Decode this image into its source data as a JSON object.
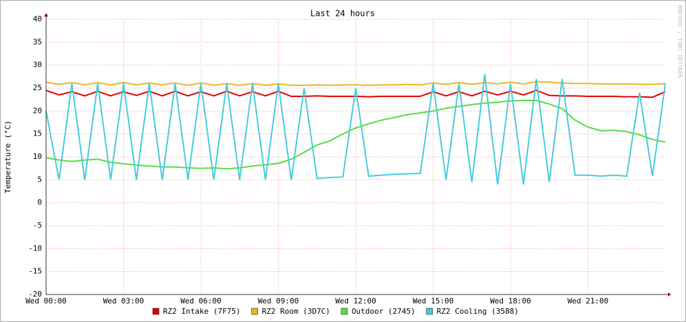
{
  "chart_data": {
    "type": "line",
    "title": "Last 24 hours",
    "y_label": "Temperature (°C)",
    "watermark": "RRDTOOL / TOBI OETIKER",
    "x": [
      0,
      0.5,
      1,
      1.5,
      2,
      2.5,
      3,
      3.5,
      4,
      4.5,
      5,
      5.5,
      6,
      6.5,
      7,
      7.5,
      8,
      8.5,
      9,
      9.5,
      10,
      10.5,
      11,
      11.5,
      12,
      12.5,
      13,
      13.5,
      14,
      14.5,
      15,
      15.5,
      16,
      16.5,
      17,
      17.5,
      18,
      18.5,
      19,
      19.5,
      20,
      20.5,
      21,
      21.5,
      22,
      22.5,
      23,
      23.5,
      24
    ],
    "xlim": [
      0,
      24
    ],
    "xticks": [
      {
        "value": 0,
        "label": "Wed 00:00"
      },
      {
        "value": 3,
        "label": "Wed 03:00"
      },
      {
        "value": 6,
        "label": "Wed 06:00"
      },
      {
        "value": 9,
        "label": "Wed 09:00"
      },
      {
        "value": 12,
        "label": "Wed 12:00"
      },
      {
        "value": 15,
        "label": "Wed 15:00"
      },
      {
        "value": 18,
        "label": "Wed 18:00"
      },
      {
        "value": 21,
        "label": "Wed 21:00"
      }
    ],
    "ylim": [
      -20,
      40
    ],
    "yticks": [
      -20,
      -15,
      -10,
      -5,
      0,
      5,
      10,
      15,
      20,
      25,
      30,
      35,
      40
    ],
    "grid": true,
    "series": [
      {
        "name": "RZ2 Intake (7F75)",
        "color": "#e00000",
        "values": [
          24.5,
          23.5,
          24.2,
          23.3,
          24.3,
          23.3,
          24.2,
          23.4,
          24.3,
          23.3,
          24.3,
          23.3,
          24.2,
          23.3,
          24.3,
          23.3,
          24.2,
          23.3,
          24.3,
          23.2,
          23.2,
          23.3,
          23.2,
          23.2,
          23.2,
          23.1,
          23.2,
          23.2,
          23.2,
          23.2,
          24.2,
          23.3,
          24.2,
          23.3,
          24.3,
          23.5,
          24.3,
          23.5,
          24.5,
          23.4,
          23.3,
          23.3,
          23.2,
          23.2,
          23.2,
          23.1,
          23.1,
          23,
          24.2
        ]
      },
      {
        "name": "RZ2 Room (3D7C)",
        "color": "#e8b820",
        "values": [
          26.3,
          25.8,
          26.2,
          25.7,
          26.2,
          25.7,
          26.2,
          25.7,
          26.1,
          25.7,
          26.1,
          25.6,
          26.1,
          25.6,
          26,
          25.6,
          26,
          25.6,
          25.9,
          25.6,
          25.6,
          25.7,
          25.6,
          25.7,
          25.7,
          25.6,
          25.7,
          25.7,
          25.8,
          25.7,
          26.1,
          25.8,
          26.2,
          25.8,
          26.2,
          25.9,
          26.3,
          25.9,
          26.4,
          26.3,
          26.1,
          26,
          26,
          25.9,
          25.9,
          25.9,
          25.8,
          25.8,
          26
        ]
      },
      {
        "name": "Outdoor (2745)",
        "color": "#55dd44",
        "values": [
          9.8,
          9.3,
          9,
          9.3,
          9.5,
          8.8,
          8.5,
          8.2,
          8,
          7.8,
          7.8,
          7.6,
          7.5,
          7.6,
          7.4,
          7.6,
          8,
          8.3,
          8.6,
          9.5,
          11,
          12.6,
          13.5,
          15,
          16.3,
          17.2,
          18,
          18.6,
          19.2,
          19.6,
          20,
          20.6,
          21,
          21.4,
          21.7,
          21.9,
          22.2,
          22.3,
          22.3,
          21.5,
          20.5,
          18,
          16.5,
          15.7,
          15.8,
          15.5,
          14.8,
          13.8,
          13.2
        ]
      },
      {
        "name": "RZ2 Cooling (3588)",
        "color": "#44ccdd",
        "values": [
          20,
          5,
          26,
          5,
          26,
          5,
          26,
          5,
          26,
          5,
          26,
          5,
          26,
          5,
          26,
          5,
          26,
          5,
          26,
          5,
          25,
          5.3,
          5.5,
          5.6,
          25,
          5.8,
          6,
          6.2,
          6.3,
          6.4,
          26,
          5,
          26,
          4.5,
          28,
          4,
          26,
          4,
          27,
          4.5,
          27,
          6,
          6,
          5.8,
          6,
          5.8,
          24,
          5.8,
          26
        ]
      }
    ]
  }
}
